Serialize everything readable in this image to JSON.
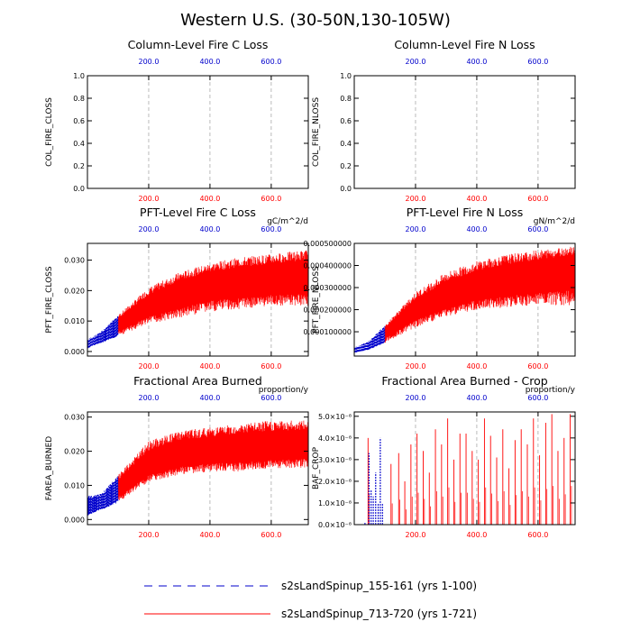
{
  "page": {
    "title": "Western U.S. (30-50N,130-105W)"
  },
  "colors": {
    "series1": "#0000cc",
    "series2": "#ff0000",
    "grid": "#aaaaaa"
  },
  "legend": [
    {
      "name": "s2sLandSpinup_155-161 (yrs 1-100)",
      "color": "#0000cc",
      "dash": true
    },
    {
      "name": "s2sLandSpinup_713-720 (yrs 1-721)",
      "color": "#ff0000",
      "dash": false
    }
  ],
  "chart_data": [
    {
      "id": "col-c",
      "type": "line",
      "title": "Column-Level Fire C Loss",
      "ylabel": "COL_FIRE_CLOSS",
      "units": "",
      "xlim": [
        0,
        721
      ],
      "ylim": [
        0,
        1.0
      ],
      "y_ticks": [
        "0.0",
        "0.2",
        "0.4",
        "0.6",
        "0.8",
        "1.0"
      ],
      "x_ticks": [
        "200.0",
        "400.0",
        "600.0"
      ],
      "series": [],
      "has_data": false
    },
    {
      "id": "col-n",
      "type": "line",
      "title": "Column-Level Fire N Loss",
      "ylabel": "COL_FIRE_NLOSS",
      "units": "",
      "xlim": [
        0,
        721
      ],
      "ylim": [
        0,
        1.0
      ],
      "y_ticks": [
        "0.0",
        "0.2",
        "0.4",
        "0.6",
        "0.8",
        "1.0"
      ],
      "x_ticks": [
        "200.0",
        "400.0",
        "600.0"
      ],
      "series": [],
      "has_data": false
    },
    {
      "id": "pft-c",
      "type": "line",
      "title": "PFT-Level Fire C Loss",
      "ylabel": "PFT_FIRE_CLOSS",
      "units": "gC/m^2/d",
      "xlim": [
        0,
        721
      ],
      "ylim": [
        -0.0015,
        0.0355
      ],
      "y_ticks": [
        "0.000",
        "0.010",
        "0.020",
        "0.030"
      ],
      "y_tick_values": [
        0,
        0.01,
        0.02,
        0.03
      ],
      "x_ticks": [
        "200.0",
        "400.0",
        "600.0"
      ],
      "has_data": true,
      "envelope": {
        "x": [
          0,
          20,
          50,
          100,
          200,
          300,
          400,
          500,
          600,
          721
        ],
        "lo": [
          0.001,
          0.002,
          0.003,
          0.005,
          0.009,
          0.011,
          0.013,
          0.014,
          0.015,
          0.015
        ],
        "mid": [
          0.003,
          0.004,
          0.005,
          0.009,
          0.015,
          0.019,
          0.022,
          0.023,
          0.024,
          0.025
        ],
        "hi": [
          0.004,
          0.005,
          0.007,
          0.012,
          0.021,
          0.026,
          0.029,
          0.031,
          0.032,
          0.0335
        ]
      }
    },
    {
      "id": "pft-n",
      "type": "line",
      "title": "PFT-Level Fire N Loss",
      "ylabel": "PFT_FIRE_NLOSS",
      "units": "gN/m^2/d",
      "xlim": [
        0,
        721
      ],
      "ylim": [
        -1e-05,
        0.0005
      ],
      "y_ticks": [
        "0.000100000",
        "0.000200000",
        "0.000300000",
        "0.000400000",
        "0.000500000"
      ],
      "y_tick_values": [
        0.0001,
        0.0002,
        0.0003,
        0.0004,
        0.0005
      ],
      "x_ticks": [
        "200.0",
        "400.0",
        "600.0"
      ],
      "has_data": true,
      "envelope": {
        "x": [
          0,
          20,
          50,
          100,
          200,
          300,
          400,
          500,
          600,
          721
        ],
        "lo": [
          5e-06,
          1e-05,
          2e-05,
          5e-05,
          0.00012,
          0.00017,
          0.0002,
          0.00021,
          0.00022,
          0.00022
        ],
        "mid": [
          2e-05,
          3e-05,
          4e-05,
          0.0001,
          0.0002,
          0.00026,
          0.00031,
          0.00034,
          0.00036,
          0.00039
        ],
        "hi": [
          3e-05,
          4e-05,
          6e-05,
          0.00013,
          0.00028,
          0.00037,
          0.00042,
          0.00045,
          0.00047,
          0.00049
        ]
      }
    },
    {
      "id": "farea",
      "type": "line",
      "title": "Fractional Area Burned",
      "ylabel": "FAREA_BURNED",
      "units": "proportion/y",
      "xlim": [
        0,
        721
      ],
      "ylim": [
        -0.0015,
        0.0315
      ],
      "y_ticks": [
        "0.000",
        "0.010",
        "0.020",
        "0.030"
      ],
      "y_tick_values": [
        0,
        0.01,
        0.02,
        0.03
      ],
      "x_ticks": [
        "200.0",
        "400.0",
        "600.0"
      ],
      "has_data": true,
      "envelope": {
        "x": [
          0,
          20,
          50,
          100,
          200,
          300,
          400,
          500,
          600,
          721
        ],
        "lo": [
          0.001,
          0.002,
          0.003,
          0.005,
          0.011,
          0.013,
          0.014,
          0.014,
          0.015,
          0.015
        ],
        "mid": [
          0.004,
          0.004,
          0.005,
          0.009,
          0.016,
          0.019,
          0.02,
          0.021,
          0.021,
          0.022
        ],
        "hi": [
          0.007,
          0.007,
          0.008,
          0.013,
          0.023,
          0.026,
          0.027,
          0.028,
          0.029,
          0.029
        ]
      }
    },
    {
      "id": "baf-crop",
      "type": "line",
      "title": "Fractional Area Burned - Crop",
      "ylabel": "BAF_CROP",
      "units": "proportion/y",
      "xlim": [
        0,
        721
      ],
      "ylim": [
        0,
        5.2e-08
      ],
      "y_ticks": [
        "0.0×10⁻⁸",
        "1.0×10⁻⁸",
        "2.0×10⁻⁸",
        "3.0×10⁻⁸",
        "4.0×10⁻⁸",
        "5.0×10⁻⁸"
      ],
      "y_tick_values": [
        0,
        1e-08,
        2e-08,
        3e-08,
        4e-08,
        5e-08
      ],
      "x_ticks": [
        "200.0",
        "400.0",
        "600.0"
      ],
      "has_data": true,
      "spikes_series1": {
        "x": [
          35,
          48,
          55,
          62,
          70,
          78,
          85,
          92
        ],
        "y": [
          1e-09,
          3.3e-08,
          1.6e-08,
          1.3e-08,
          2.4e-08,
          1e-08,
          4e-08,
          1e-08
        ]
      },
      "spikes_series2": {
        "x": [
          45,
          120,
          145,
          165,
          185,
          205,
          225,
          245,
          265,
          285,
          305,
          325,
          345,
          365,
          385,
          405,
          425,
          445,
          465,
          485,
          505,
          525,
          545,
          565,
          585,
          605,
          625,
          645,
          665,
          685,
          705
        ],
        "y": [
          4e-08,
          2.8e-08,
          3.3e-08,
          2e-08,
          3.7e-08,
          4.2e-08,
          3.4e-08,
          2.4e-08,
          4.4e-08,
          3.7e-08,
          4.9e-08,
          3e-08,
          4.2e-08,
          4.2e-08,
          3.4e-08,
          3e-08,
          4.9e-08,
          4.1e-08,
          3.1e-08,
          4.4e-08,
          2.6e-08,
          3.9e-08,
          4.4e-08,
          3.7e-08,
          4.9e-08,
          3.2e-08,
          4.7e-08,
          5.1e-08,
          3.4e-08,
          4e-08,
          5.1e-08
        ]
      }
    }
  ]
}
